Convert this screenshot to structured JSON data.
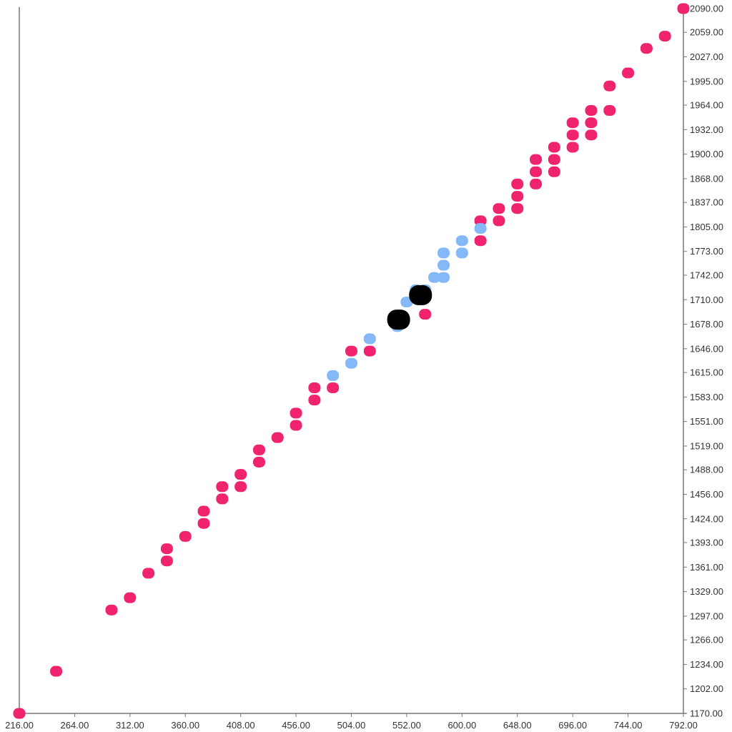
{
  "chart_data": {
    "type": "scatter",
    "title": "",
    "xlabel": "",
    "ylabel": "",
    "xlim": [
      216,
      792
    ],
    "ylim": [
      1170,
      2090
    ],
    "x_ticks": [
      "216.00",
      "264.00",
      "312.00",
      "360.00",
      "408.00",
      "456.00",
      "504.00",
      "552.00",
      "600.00",
      "648.00",
      "696.00",
      "744.00",
      "792.00"
    ],
    "y_ticks": [
      "1170.00",
      "1202.00",
      "1234.00",
      "1266.00",
      "1297.00",
      "1329.00",
      "1361.00",
      "1393.00",
      "1424.00",
      "1456.00",
      "1488.00",
      "1519.00",
      "1551.00",
      "1583.00",
      "1615.00",
      "1646.00",
      "1678.00",
      "1710.00",
      "1742.00",
      "1773.00",
      "1805.00",
      "1837.00",
      "1868.00",
      "1900.00",
      "1932.00",
      "1964.00",
      "1995.00",
      "2027.00",
      "2059.00",
      "2090.00"
    ],
    "y_axis_side": "right",
    "grid": false,
    "series": [
      {
        "color": "#f0236e",
        "points": [
          [
            216,
            1170
          ],
          [
            248,
            1225
          ],
          [
            296,
            1305
          ],
          [
            312,
            1321
          ],
          [
            328,
            1353
          ],
          [
            344,
            1369
          ],
          [
            344,
            1385
          ],
          [
            360,
            1401
          ],
          [
            376,
            1418
          ],
          [
            376,
            1434
          ],
          [
            392,
            1450
          ],
          [
            392,
            1466
          ],
          [
            408,
            1466
          ],
          [
            408,
            1482
          ],
          [
            424,
            1498
          ],
          [
            424,
            1514
          ],
          [
            440,
            1530
          ],
          [
            456,
            1546
          ],
          [
            456,
            1562
          ],
          [
            472,
            1579
          ],
          [
            472,
            1595
          ],
          [
            488,
            1595
          ],
          [
            504,
            1643
          ],
          [
            520,
            1643
          ],
          [
            568,
            1691
          ],
          [
            616,
            1787
          ],
          [
            616,
            1813
          ],
          [
            632,
            1813
          ],
          [
            632,
            1829
          ],
          [
            648,
            1829
          ],
          [
            648,
            1845
          ],
          [
            648,
            1861
          ],
          [
            664,
            1861
          ],
          [
            664,
            1877
          ],
          [
            664,
            1893
          ],
          [
            680,
            1877
          ],
          [
            680,
            1893
          ],
          [
            680,
            1909
          ],
          [
            696,
            1909
          ],
          [
            696,
            1925
          ],
          [
            696,
            1941
          ],
          [
            712,
            1925
          ],
          [
            712,
            1941
          ],
          [
            712,
            1957
          ],
          [
            728,
            1957
          ],
          [
            728,
            1989
          ],
          [
            744,
            2006
          ],
          [
            760,
            2038
          ],
          [
            776,
            2054
          ],
          [
            792,
            2090
          ]
        ]
      },
      {
        "color": "#85b8f7",
        "points": [
          [
            488,
            1611
          ],
          [
            504,
            1627
          ],
          [
            520,
            1659
          ],
          [
            544,
            1675
          ],
          [
            552,
            1707
          ],
          [
            560,
            1723
          ],
          [
            568,
            1723
          ],
          [
            576,
            1739
          ],
          [
            584,
            1739
          ],
          [
            584,
            1755
          ],
          [
            584,
            1771
          ],
          [
            600,
            1771
          ],
          [
            600,
            1787
          ],
          [
            616,
            1803
          ]
        ]
      },
      {
        "color": "#000000",
        "size": "large",
        "points": [
          [
            545,
            1684
          ],
          [
            564,
            1716
          ]
        ]
      }
    ]
  }
}
